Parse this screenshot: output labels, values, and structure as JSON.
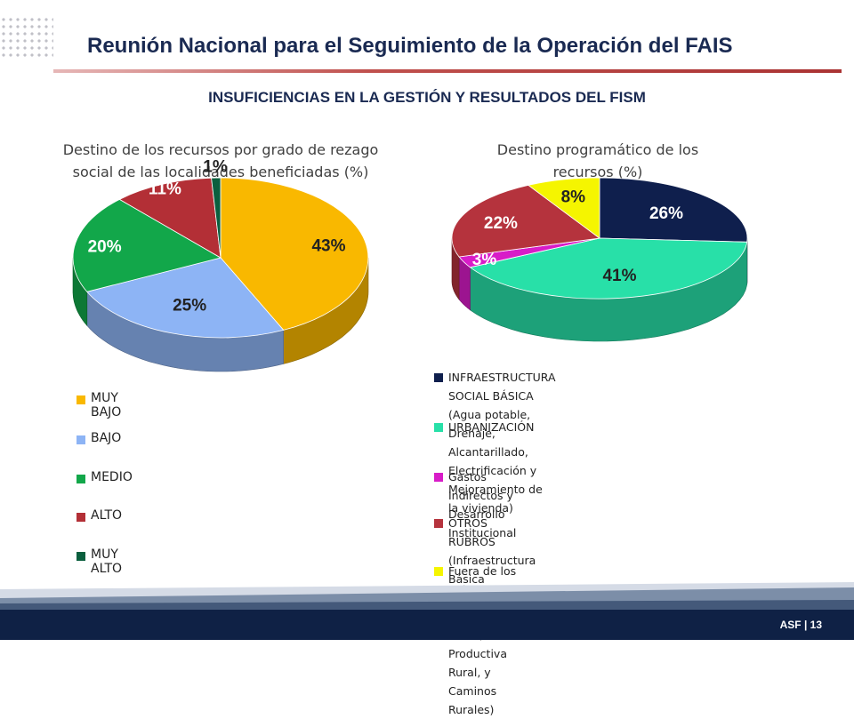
{
  "header": {
    "title": "Reunión Nacional para el Seguimiento de la Operación del FAIS",
    "subtitle": "INSUFICIENCIAS EN LA GESTIÓN Y RESULTADOS DEL FISM"
  },
  "footer": {
    "text": "ASF | 13"
  },
  "colors": {
    "navy": "#0f2145",
    "accent_red": "#c0504d"
  },
  "chart_data": [
    {
      "type": "pie",
      "title_lines": [
        "Destino de los recursos por grado de rezago",
        "social de las localidades beneficiadas  (%)"
      ],
      "legend_position": "bottom",
      "slices": [
        {
          "name": "MUY BAJO",
          "value": 43,
          "label": "43%",
          "color": "#f9b800"
        },
        {
          "name": "BAJO",
          "value": 25,
          "label": "25%",
          "color": "#8db4f5"
        },
        {
          "name": "MEDIO",
          "value": 20,
          "label": "20%",
          "color": "#12a74a"
        },
        {
          "name": "ALTO",
          "value": 11,
          "label": "11%",
          "color": "#b32f36"
        },
        {
          "name": "MUY ALTO",
          "value": 1,
          "label": "1%",
          "color": "#0b5f3e"
        }
      ]
    },
    {
      "type": "pie",
      "title_lines": [
        "Destino programático de los",
        "recursos (%)"
      ],
      "legend_position": "bottom",
      "slices": [
        {
          "name_lines": [
            "INFRAESTRUCTURA SOCIAL BÁSICA (Agua potable, Drenaje,",
            "Alcantarillado, Electrificación y Mejoramiento de la vivienda)"
          ],
          "value": 26,
          "label": "26%",
          "color": "#0f1f4d"
        },
        {
          "name_lines": [
            "URBANIZACIÓN"
          ],
          "value": 41,
          "label": "41%",
          "color": "#28e0a8"
        },
        {
          "name_lines": [
            "Gastos Indirectos y Desarrollo Institucional"
          ],
          "value": 3,
          "label": "3%",
          "color": "#d81cc8"
        },
        {
          "name_lines": [
            "OTROS RUBROS (Infraestructura Básica Educativa, Básica de",
            "Salud, Productiva Rural, y Caminos Rurales)"
          ],
          "value": 22,
          "label": "22%",
          "color": "#b5333d"
        },
        {
          "name_lines": [
            "Fuera de los Rubros Autorizados."
          ],
          "value": 8,
          "label": "8%",
          "color": "#f5f500"
        }
      ]
    }
  ]
}
